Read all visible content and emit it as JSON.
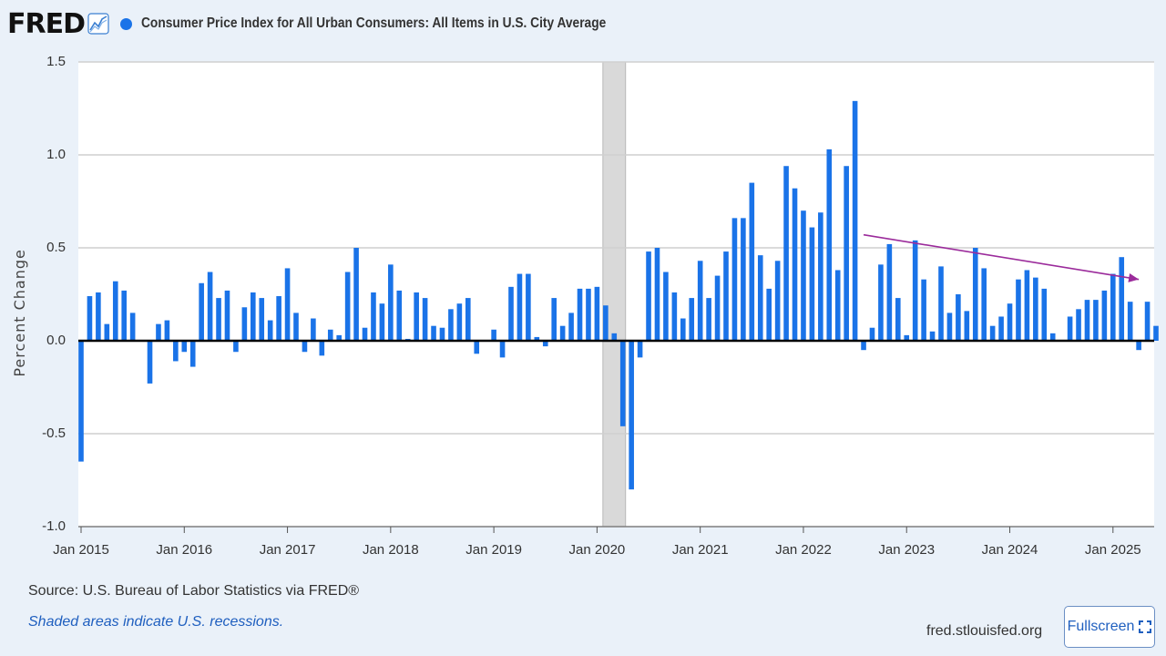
{
  "header": {
    "logo": "FRED",
    "title": "Consumer Price Index for All Urban Consumers: All Items in U.S. City Average",
    "series_color": "#1a73e8"
  },
  "footer": {
    "source": "Source: U.S. Bureau of Labor Statistics via FRED®",
    "recession_note": "Shaded areas indicate U.S. recessions.",
    "site": "fred.stlouisfed.org",
    "fullscreen_label": "Fullscreen"
  },
  "chart_data": {
    "type": "bar",
    "title": "Consumer Price Index for All Urban Consumers: All Items in U.S. City Average",
    "xlabel": "",
    "ylabel": "Percent Change",
    "ylim": [
      -1.0,
      1.5
    ],
    "yticks": [
      "1.5",
      "1.0",
      "0.5",
      "0.0",
      "-0.5",
      "-1.0"
    ],
    "x_tick_labels": [
      "Jan 2015",
      "Jan 2016",
      "Jan 2017",
      "Jan 2018",
      "Jan 2019",
      "Jan 2020",
      "Jan 2021",
      "Jan 2022",
      "Jan 2023",
      "Jan 2024",
      "Jan 2025"
    ],
    "x_start": "2015-01",
    "bar_color": "#1a73e8",
    "grid": true,
    "recession_shading": {
      "start": "2020-02",
      "end": "2020-04",
      "color": "#d9d9d9"
    },
    "annotation": {
      "type": "arrow",
      "from": [
        "2022-08",
        0.57
      ],
      "to": [
        "2025-04",
        0.33
      ],
      "color": "#9b2b9b"
    },
    "values": [
      -0.65,
      0.24,
      0.26,
      0.09,
      0.32,
      0.27,
      0.15,
      0.0,
      -0.23,
      0.09,
      0.11,
      -0.11,
      -0.06,
      -0.14,
      0.31,
      0.37,
      0.23,
      0.27,
      -0.06,
      0.18,
      0.26,
      0.23,
      0.11,
      0.24,
      0.39,
      0.15,
      -0.06,
      0.12,
      -0.08,
      0.06,
      0.03,
      0.37,
      0.5,
      0.07,
      0.26,
      0.2,
      0.41,
      0.27,
      0.01,
      0.26,
      0.23,
      0.08,
      0.07,
      0.17,
      0.2,
      0.23,
      -0.07,
      0.0,
      0.06,
      -0.09,
      0.29,
      0.36,
      0.36,
      0.02,
      -0.03,
      0.23,
      0.08,
      0.15,
      0.28,
      0.28,
      0.29,
      0.19,
      0.04,
      -0.46,
      -0.8,
      -0.09,
      0.48,
      0.5,
      0.37,
      0.26,
      0.12,
      0.23,
      0.43,
      0.23,
      0.35,
      0.48,
      0.66,
      0.66,
      0.85,
      0.46,
      0.28,
      0.43,
      0.94,
      0.82,
      0.7,
      0.61,
      0.69,
      1.03,
      0.38,
      0.94,
      1.29,
      -0.05,
      0.07,
      0.41,
      0.52,
      0.23,
      0.03,
      0.54,
      0.33,
      0.05,
      0.4,
      0.15,
      0.25,
      0.16,
      0.5,
      0.39,
      0.08,
      0.13,
      0.2,
      0.33,
      0.38,
      0.34,
      0.28,
      0.04,
      0.0,
      0.13,
      0.17,
      0.22,
      0.22,
      0.27,
      0.36,
      0.45,
      0.21,
      -0.05,
      0.21,
      0.08
    ]
  }
}
